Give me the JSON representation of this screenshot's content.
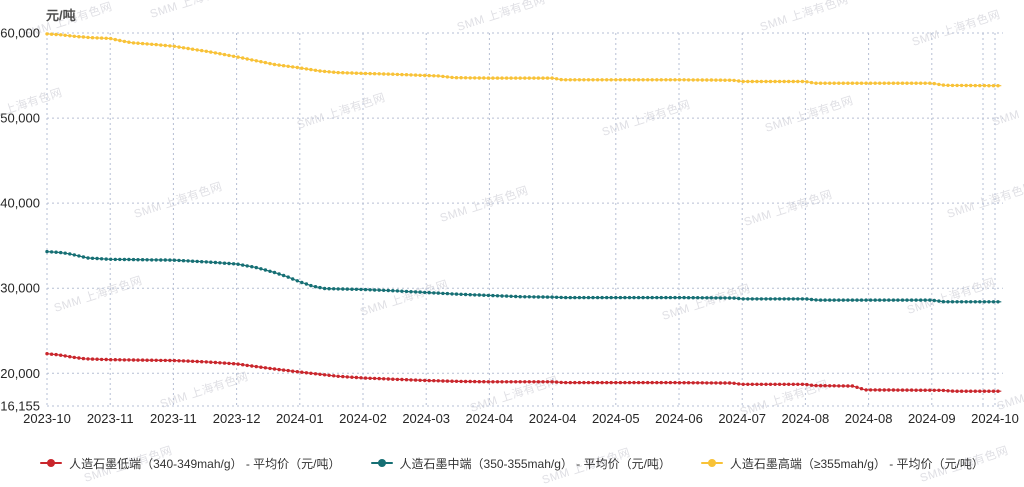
{
  "watermark": {
    "text": "SMM 上海有色网"
  },
  "chart_data": {
    "type": "line",
    "title": "",
    "unit_label": "元/吨",
    "grid": true,
    "legend_position": "bottom",
    "y_axis": {
      "min": 16155,
      "max": 60000,
      "tick_values": [
        60000,
        50000,
        40000,
        30000,
        20000,
        16155
      ],
      "tick_labels": [
        "60,000",
        "50,000",
        "40,000",
        "30,000",
        "20,000",
        "16,155"
      ]
    },
    "x_axis": {
      "tick_labels": [
        "2023-10",
        "2023-11",
        "2023-11",
        "2023-12",
        "2024-01",
        "2024-02",
        "2024-03",
        "2024-04",
        "2024-04",
        "2024-05",
        "2024-06",
        "2024-07",
        "2024-08",
        "2024-08",
        "2024-09",
        "2024-10"
      ],
      "x_encoding": "tick index 0-15 spanning 2023-10 to 2024-10"
    },
    "series": [
      {
        "name": "人造石墨低端（340-349mah/g） - 平均价（元/吨）",
        "color": "#c9262c",
        "points": [
          [
            0,
            22300
          ],
          [
            0.2,
            22150
          ],
          [
            0.4,
            21900
          ],
          [
            0.6,
            21700
          ],
          [
            1,
            21600
          ],
          [
            1.5,
            21550
          ],
          [
            2,
            21500
          ],
          [
            2.5,
            21350
          ],
          [
            3,
            21100
          ],
          [
            3.3,
            20800
          ],
          [
            3.6,
            20500
          ],
          [
            4,
            20150
          ],
          [
            4.3,
            19900
          ],
          [
            4.6,
            19650
          ],
          [
            5,
            19450
          ],
          [
            5.5,
            19300
          ],
          [
            6,
            19150
          ],
          [
            6.5,
            19050
          ],
          [
            7,
            19000
          ],
          [
            8,
            19000
          ],
          [
            8.2,
            18900
          ],
          [
            10,
            18900
          ],
          [
            10.85,
            18850
          ],
          [
            11,
            18700
          ],
          [
            12,
            18700
          ],
          [
            12.15,
            18550
          ],
          [
            12.75,
            18500
          ],
          [
            12.95,
            18050
          ],
          [
            14.15,
            18000
          ],
          [
            14.35,
            17900
          ],
          [
            15.1,
            17900
          ]
        ]
      },
      {
        "name": "人造石墨中端（350-355mah/g） - 平均价（元/吨）",
        "color": "#166f74",
        "points": [
          [
            0,
            34300
          ],
          [
            0.2,
            34200
          ],
          [
            0.35,
            34050
          ],
          [
            0.5,
            33800
          ],
          [
            0.65,
            33550
          ],
          [
            1,
            33400
          ],
          [
            1.5,
            33350
          ],
          [
            2,
            33300
          ],
          [
            2.5,
            33100
          ],
          [
            3,
            32850
          ],
          [
            3.3,
            32450
          ],
          [
            3.6,
            31850
          ],
          [
            3.8,
            31350
          ],
          [
            4,
            30750
          ],
          [
            4.2,
            30250
          ],
          [
            4.4,
            29950
          ],
          [
            5,
            29850
          ],
          [
            5.5,
            29700
          ],
          [
            6,
            29500
          ],
          [
            6.5,
            29300
          ],
          [
            7,
            29150
          ],
          [
            7.5,
            29000
          ],
          [
            8,
            28950
          ],
          [
            8.2,
            28900
          ],
          [
            10,
            28900
          ],
          [
            10.85,
            28850
          ],
          [
            11,
            28750
          ],
          [
            12,
            28750
          ],
          [
            12.2,
            28600
          ],
          [
            14,
            28600
          ],
          [
            14.2,
            28400
          ],
          [
            15.1,
            28400
          ]
        ]
      },
      {
        "name": "人造石墨高端（≥355mah/g） - 平均价（元/吨）",
        "color": "#f8c237",
        "points": [
          [
            0,
            59900
          ],
          [
            0.2,
            59800
          ],
          [
            0.45,
            59600
          ],
          [
            0.7,
            59450
          ],
          [
            1,
            59350
          ],
          [
            1.2,
            59050
          ],
          [
            1.35,
            58850
          ],
          [
            1.7,
            58650
          ],
          [
            2,
            58450
          ],
          [
            2.3,
            58100
          ],
          [
            2.6,
            57750
          ],
          [
            3,
            57200
          ],
          [
            3.3,
            56750
          ],
          [
            3.6,
            56300
          ],
          [
            4,
            55900
          ],
          [
            4.3,
            55550
          ],
          [
            4.6,
            55350
          ],
          [
            5,
            55250
          ],
          [
            5.5,
            55150
          ],
          [
            6,
            55000
          ],
          [
            6.2,
            54950
          ],
          [
            6.45,
            54750
          ],
          [
            7,
            54700
          ],
          [
            8,
            54700
          ],
          [
            8.15,
            54500
          ],
          [
            10,
            54500
          ],
          [
            10.85,
            54450
          ],
          [
            11,
            54300
          ],
          [
            12,
            54300
          ],
          [
            12.15,
            54100
          ],
          [
            14,
            54100
          ],
          [
            14.2,
            53850
          ],
          [
            15.1,
            53800
          ]
        ]
      }
    ]
  }
}
